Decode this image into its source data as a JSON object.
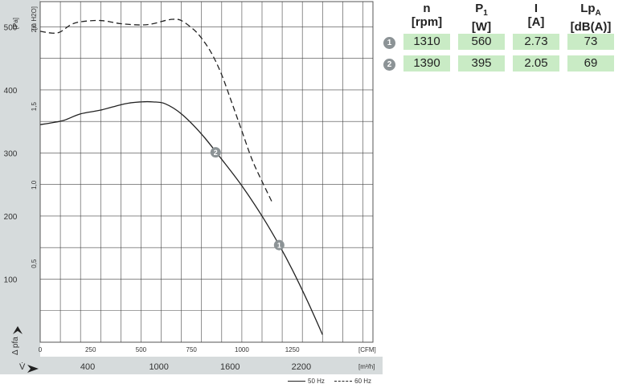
{
  "chart_data": {
    "type": "line",
    "xlabel": "[CFM]",
    "x2label": "[m³/h]",
    "ylabel": "[Pa]",
    "y2label": "[in H2O]",
    "y_axis_symbol": "Δ pfa",
    "x_axis_symbol": "V̇",
    "xlim": [
      0,
      1650
    ],
    "ylim": [
      0,
      540
    ],
    "x_ticks": [
      "0",
      "250",
      "500",
      "750",
      "1000",
      "1250"
    ],
    "x2_ticks": [
      "400",
      "1000",
      "1600",
      "2200"
    ],
    "y_ticks": [
      "100",
      "200",
      "300",
      "400",
      "500"
    ],
    "y2_ticks": [
      "0,5",
      "1,0",
      "1,5",
      "2,0"
    ],
    "series": [
      {
        "name": "50 Hz",
        "style": "solid",
        "x": [
          0,
          60,
          120,
          200,
          300,
          420,
          500,
          560,
          620,
          700,
          800,
          900,
          1000,
          1100,
          1185,
          1250,
          1330,
          1400
        ],
        "y": [
          345,
          348,
          352,
          362,
          368,
          378,
          381,
          381,
          378,
          362,
          330,
          290,
          248,
          200,
          154,
          115,
          62,
          12
        ]
      },
      {
        "name": "60 Hz",
        "style": "dashed",
        "x": [
          0,
          60,
          100,
          150,
          200,
          300,
          400,
          500,
          560,
          620,
          660,
          700,
          760,
          800,
          850,
          900,
          950,
          1000,
          1050,
          1100,
          1150
        ],
        "y": [
          493,
          490,
          492,
          503,
          508,
          510,
          505,
          503,
          505,
          510,
          512,
          510,
          496,
          482,
          458,
          424,
          380,
          335,
          290,
          255,
          222
        ]
      }
    ],
    "points": [
      {
        "id": "1",
        "x": 1185,
        "y": 154
      },
      {
        "id": "2",
        "x": 870,
        "y": 301
      }
    ],
    "legend_position": "bottom-right",
    "grid": true
  },
  "table": {
    "headers": [
      {
        "main": "n",
        "sub": "",
        "unit": "[rpm]"
      },
      {
        "main": "P",
        "sub": "1",
        "unit": "[W]"
      },
      {
        "main": "I",
        "sub": "",
        "unit": "[A]"
      },
      {
        "main": "Lp",
        "sub": "A",
        "unit": "[dB(A)]"
      }
    ],
    "rows": [
      {
        "id": "1",
        "n": "1310",
        "p1": "560",
        "i": "2.73",
        "lpa": "73"
      },
      {
        "id": "2",
        "n": "1390",
        "p1": "395",
        "i": "2.05",
        "lpa": "69"
      }
    ]
  },
  "legend": {
    "solid": "50 Hz",
    "dashed": "60 Hz"
  },
  "colors": {
    "axis_panel": "#d6dbdc",
    "row_fill": "#c9ebc5",
    "badge": "#8c9396",
    "curve": "#222222"
  }
}
